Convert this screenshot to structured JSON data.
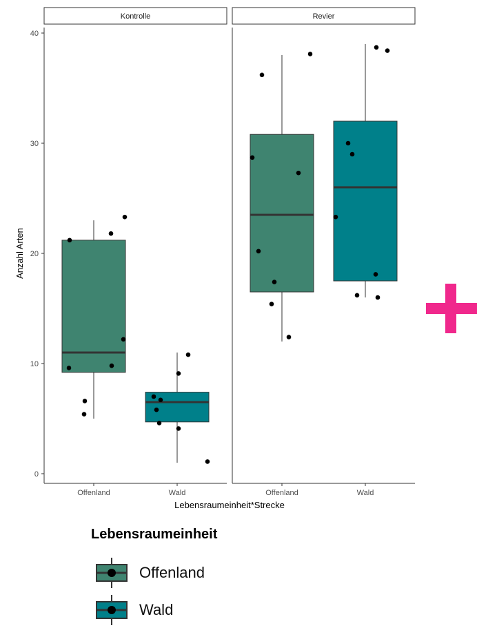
{
  "chart_data": {
    "type": "boxplot",
    "ylabel": "Anzahl Arten",
    "xlabel": "Lebensraumeinheit*Strecke",
    "ylim": [
      0,
      40
    ],
    "yticks": [
      "0",
      "10",
      "20",
      "30",
      "40"
    ],
    "grid": false,
    "facets": [
      {
        "strip": "Kontrolle",
        "categories": [
          "Offenland",
          "Wald"
        ],
        "boxes": [
          {
            "group": "Offenland",
            "min": 5,
            "q1": 9.2,
            "median": 11,
            "q3": 21.2,
            "max": 23,
            "points": [
              21.2,
              23.3,
              21.8,
              12.2,
              9.8,
              9.6,
              6.6,
              5.4
            ]
          },
          {
            "group": "Wald",
            "min": 1,
            "q1": 4.7,
            "median": 6.5,
            "q3": 7.4,
            "max": 11,
            "points": [
              10.8,
              9.1,
              7.0,
              6.7,
              5.8,
              4.6,
              4.1,
              1.1
            ]
          }
        ]
      },
      {
        "strip": "Revier",
        "categories": [
          "Offenland",
          "Wald"
        ],
        "boxes": [
          {
            "group": "Offenland",
            "min": 12,
            "q1": 16.5,
            "median": 23.5,
            "q3": 30.8,
            "max": 38,
            "points": [
              36.2,
              38.1,
              28.7,
              27.3,
              20.2,
              17.4,
              15.4,
              12.4
            ]
          },
          {
            "group": "Wald",
            "min": 16,
            "q1": 17.5,
            "median": 26,
            "q3": 32,
            "max": 39,
            "points": [
              38.7,
              38.4,
              30.0,
              29.0,
              23.3,
              18.1,
              16.2,
              16.0
            ]
          }
        ]
      }
    ],
    "legend": {
      "title": "Lebensraumeinheit",
      "position": "bottom",
      "items": [
        {
          "label": "Offenland",
          "color": "#3f8470"
        },
        {
          "label": "Wald",
          "color": "#00808a"
        }
      ]
    }
  },
  "colors": {
    "Offenland": "#3f8470",
    "Wald": "#00808a",
    "plus": "#f0288c"
  },
  "decor": {
    "plus_icon": "plus-icon"
  }
}
